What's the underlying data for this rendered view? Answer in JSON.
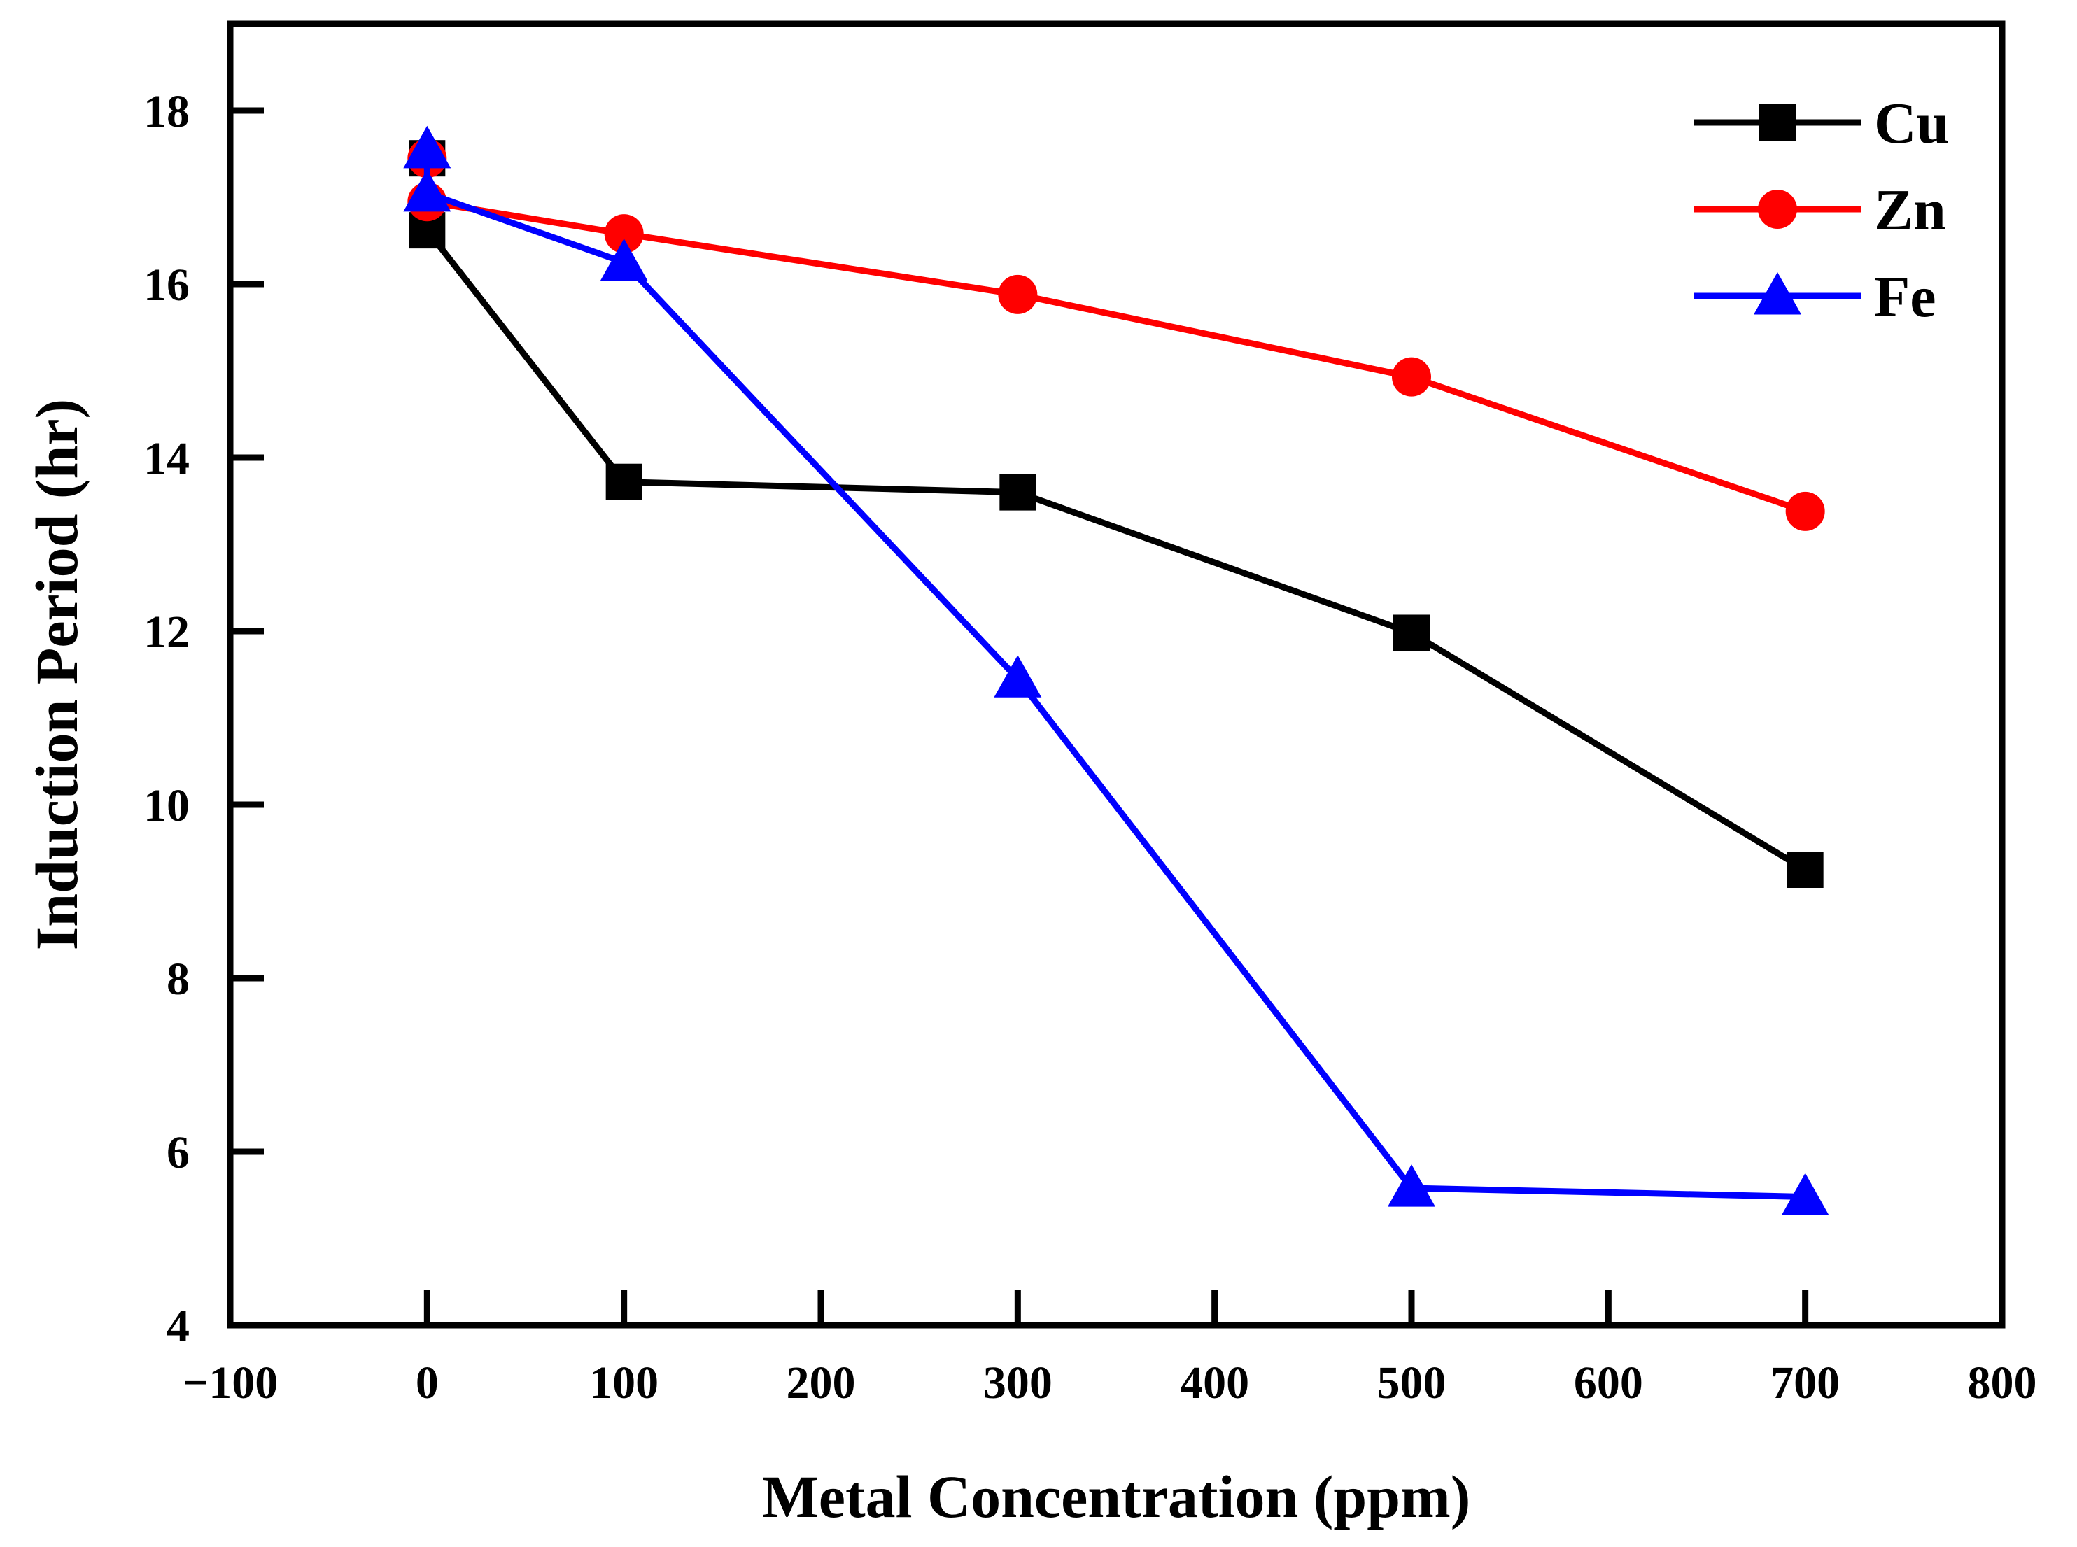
{
  "chart_data": {
    "type": "line",
    "title": "",
    "xlabel": "Metal Concentration (ppm)",
    "ylabel": "Induction Period (hr)",
    "xlim": [
      -100,
      800
    ],
    "ylim": [
      4,
      19
    ],
    "x_ticks": [
      -100,
      0,
      100,
      200,
      300,
      400,
      500,
      600,
      700,
      800
    ],
    "x_tick_labels": [
      "−100",
      "0",
      "100",
      "200",
      "300",
      "400",
      "500",
      "600",
      "700",
      "800"
    ],
    "y_ticks": [
      4,
      6,
      8,
      10,
      12,
      14,
      16,
      18
    ],
    "y_tick_labels": [
      "4",
      "6",
      "8",
      "10",
      "12",
      "14",
      "16",
      "18"
    ],
    "grid": false,
    "legend_position": "top-right",
    "series": [
      {
        "name": "Cu",
        "color": "#000000",
        "marker": "square",
        "points": [
          [
            0,
            17.45
          ],
          [
            0,
            16.62
          ],
          [
            100,
            13.72
          ],
          [
            300,
            13.6
          ],
          [
            500,
            11.98
          ],
          [
            700,
            9.25
          ]
        ]
      },
      {
        "name": "Zn",
        "color": "#ff0000",
        "marker": "circle",
        "points": [
          [
            0,
            17.45
          ],
          [
            0,
            16.95
          ],
          [
            100,
            16.58
          ],
          [
            300,
            15.88
          ],
          [
            500,
            14.93
          ],
          [
            700,
            13.38
          ]
        ]
      },
      {
        "name": "Fe",
        "color": "#0000ff",
        "marker": "triangle",
        "points": [
          [
            0,
            17.55
          ],
          [
            0,
            17.05
          ],
          [
            100,
            16.25
          ],
          [
            300,
            11.45
          ],
          [
            500,
            5.58
          ],
          [
            700,
            5.48
          ]
        ]
      }
    ]
  }
}
